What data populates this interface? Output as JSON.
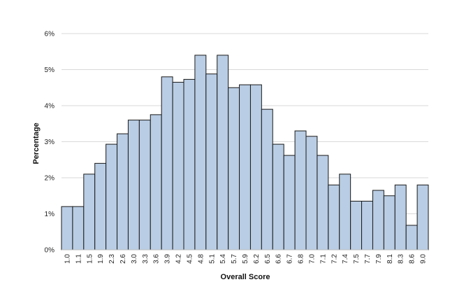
{
  "chart_data": {
    "type": "bar",
    "title": "",
    "xlabel": "Overall Score",
    "ylabel": "Percentage",
    "ylim": [
      0,
      6
    ],
    "yticks": [
      "0%",
      "1%",
      "2%",
      "3%",
      "4%",
      "5%",
      "6%"
    ],
    "grid": true,
    "bar_color": "#b9cde4",
    "categories": [
      "1.0",
      "1.1",
      "1.5",
      "1.9",
      "2.3",
      "2.6",
      "3.0",
      "3.3",
      "3.6",
      "3.9",
      "4.2",
      "4.5",
      "4.8",
      "5.1",
      "5.4",
      "5.7",
      "5.9",
      "6.2",
      "6.5",
      "6.6",
      "6.7",
      "6.8",
      "7.0",
      "7.1",
      "7.2",
      "7.4",
      "7.5",
      "7.7",
      "7.9",
      "8.1",
      "8.3",
      "8.6",
      "9.0"
    ],
    "values": [
      1.2,
      1.2,
      2.1,
      2.4,
      2.93,
      3.22,
      3.6,
      3.6,
      3.75,
      4.8,
      4.65,
      4.73,
      5.4,
      4.88,
      5.4,
      4.5,
      4.58,
      4.58,
      3.9,
      2.93,
      2.62,
      3.3,
      3.15,
      2.62,
      1.8,
      2.1,
      1.35,
      1.35,
      1.65,
      1.5,
      1.8,
      0.68,
      1.8
    ]
  }
}
